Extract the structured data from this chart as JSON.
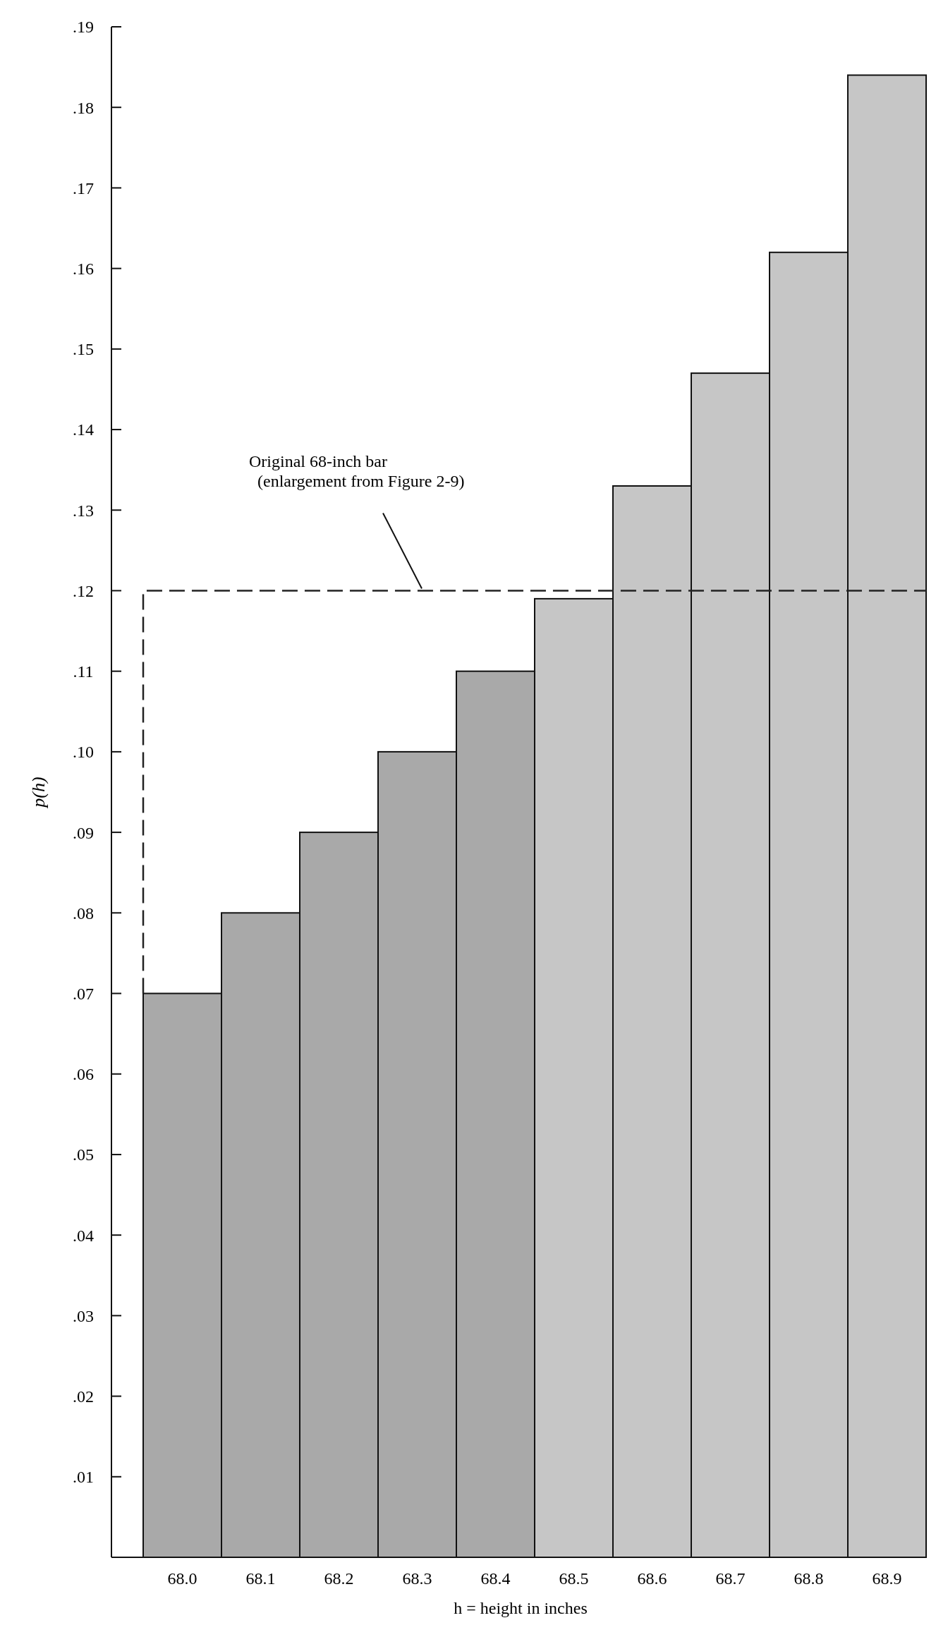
{
  "chart_data": {
    "type": "bar",
    "xlabel": "h = height in inches",
    "ylabel": "p(h)",
    "categories": [
      "68.0",
      "68.1",
      "68.2",
      "68.3",
      "68.4",
      "68.5",
      "68.6",
      "68.7",
      "68.8",
      "68.9"
    ],
    "values": [
      0.07,
      0.08,
      0.09,
      0.1,
      0.11,
      0.119,
      0.133,
      0.147,
      0.162,
      0.184
    ],
    "colors": [
      "#a9a9a9",
      "#a9a9a9",
      "#a9a9a9",
      "#a9a9a9",
      "#a9a9a9",
      "#c6c6c6",
      "#c6c6c6",
      "#c6c6c6",
      "#c6c6c6",
      "#c6c6c6"
    ],
    "ylim": [
      0,
      0.19
    ],
    "yticks": [
      {
        "value": 0.01,
        "label": ".01"
      },
      {
        "value": 0.02,
        "label": ".02"
      },
      {
        "value": 0.03,
        "label": ".03"
      },
      {
        "value": 0.04,
        "label": ".04"
      },
      {
        "value": 0.05,
        "label": ".05"
      },
      {
        "value": 0.06,
        "label": ".06"
      },
      {
        "value": 0.07,
        "label": ".07"
      },
      {
        "value": 0.08,
        "label": ".08"
      },
      {
        "value": 0.09,
        "label": ".09"
      },
      {
        "value": 0.1,
        "label": ".10"
      },
      {
        "value": 0.11,
        "label": ".11"
      },
      {
        "value": 0.12,
        "label": ".12"
      },
      {
        "value": 0.13,
        "label": ".13"
      },
      {
        "value": 0.14,
        "label": ".14"
      },
      {
        "value": 0.15,
        "label": ".15"
      },
      {
        "value": 0.16,
        "label": ".16"
      },
      {
        "value": 0.17,
        "label": ".17"
      },
      {
        "value": 0.18,
        "label": ".18"
      },
      {
        "value": 0.19,
        "label": ".19"
      }
    ],
    "ref_lines": [
      {
        "axis": "y",
        "value": 0.12,
        "label": "Original 68-inch bar\n(enlargement from Figure 2-9)",
        "color": "#222222",
        "line_style": "dashed"
      }
    ]
  }
}
